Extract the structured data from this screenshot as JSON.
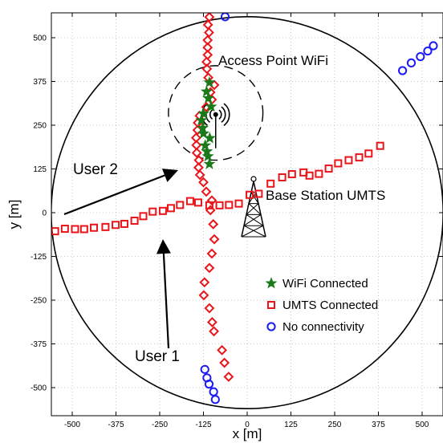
{
  "chart_data": {
    "type": "scatter",
    "xlabel": "x [m]",
    "ylabel": "y [m]",
    "xlim": [
      -580,
      560
    ],
    "ylim": [
      -580,
      595
    ],
    "xticks": [
      -500,
      -375,
      -250,
      -125,
      0,
      125,
      250,
      375,
      500
    ],
    "yticks": [
      -500,
      -375,
      -250,
      -125,
      0,
      125,
      250,
      375,
      500
    ],
    "xtick_labels": [
      "-500",
      "-375",
      "-250",
      "-125",
      "0",
      "125",
      "250",
      "375",
      "500"
    ],
    "ytick_labels": [
      "-500",
      "-375",
      "-250",
      "-125",
      "0",
      "125",
      "250",
      "375",
      "500"
    ],
    "grid": true,
    "legend_position": "lower-right",
    "umts_cell": {
      "center": [
        0,
        0
      ],
      "radius": 560
    },
    "wifi_cell": {
      "center": [
        -90,
        285
      ],
      "radius": 135
    },
    "annotations": {
      "access_point": "Access Point WiFi",
      "base_station": "Base Station UMTS",
      "user1": "User 1",
      "user2": "User 2"
    },
    "series": [
      {
        "name": "WiFi Connected",
        "marker": "star",
        "color": "#1a7a1a",
        "x": [
          -108,
          -116,
          -111,
          -103,
          -125,
          -131,
          -127,
          -125,
          -107,
          -120,
          -115,
          -112,
          -108
        ],
        "y": [
          372,
          346,
          327,
          303,
          283,
          264,
          242,
          226,
          213,
          192,
          175,
          161,
          139
        ]
      },
      {
        "name": "UMTS Connected",
        "marker": "square",
        "color": "#e8151a",
        "x": [
          -549,
          -521,
          -492,
          -466,
          -438,
          -405,
          -376,
          -351,
          -322,
          -297,
          -270,
          -241,
          -218,
          -192,
          -163,
          -140,
          -108,
          -79,
          -52,
          -24,
          7,
          33,
          67,
          100,
          128,
          161,
          178,
          205,
          233,
          260,
          290,
          320,
          347,
          380
        ],
        "y": [
          -53,
          -46,
          -47,
          -47,
          -43,
          -41,
          -35,
          -32,
          -23,
          -10,
          3,
          5,
          13,
          22,
          33,
          29,
          21,
          21,
          22,
          26,
          51,
          54,
          83,
          101,
          110,
          115,
          106,
          111,
          126,
          141,
          150,
          158,
          169,
          191
        ]
      },
      {
        "name": "UMTS Connected",
        "marker": "diamond",
        "color": "#e8151a",
        "x": [
          -108,
          -112,
          -109,
          -113,
          -113,
          -113,
          -116,
          -115,
          -111,
          -94,
          -105,
          -101,
          -117,
          -136,
          -141,
          -142,
          -146,
          -145,
          -144,
          -138,
          -139,
          -135,
          -125,
          -117,
          -101,
          -105,
          -97,
          -94,
          -101,
          -108,
          -122,
          -124,
          -108,
          -100,
          -95,
          -72,
          -65,
          -53
        ],
        "y": [
          559,
          537,
          515,
          493,
          472,
          451,
          431,
          411,
          386,
          365,
          344,
          323,
          302,
          277,
          257,
          236,
          214,
          193,
          171,
          150,
          129,
          108,
          87,
          60,
          35,
          7,
          -33,
          -76,
          -117,
          -158,
          -199,
          -236,
          -273,
          -313,
          -339,
          -393,
          -429,
          -469
        ]
      },
      {
        "name": "No connectivity",
        "marker": "circle",
        "color": "#1b1bf5",
        "x": [
          -121,
          -115,
          -109,
          -96,
          -91
        ],
        "y": [
          -448,
          -472,
          -490,
          -512,
          -534
        ]
      },
      {
        "name": "No connectivity",
        "marker": "circle",
        "color": "#1b1bf5",
        "x": [
          -75,
          -63
        ],
        "y": [
          584,
          560
        ]
      },
      {
        "name": "No connectivity",
        "marker": "circle",
        "color": "#1b1bf5",
        "x": [
          444,
          469,
          495,
          516,
          532
        ],
        "y": [
          406,
          428,
          446,
          462,
          477
        ]
      }
    ],
    "legend": [
      {
        "label": "WiFi Connected",
        "marker": "star",
        "color": "#1a7a1a"
      },
      {
        "label": "UMTS Connected",
        "marker": "square",
        "color": "#e8151a"
      },
      {
        "label": "No connectivity",
        "marker": "circle",
        "color": "#1b1bf5"
      }
    ]
  }
}
